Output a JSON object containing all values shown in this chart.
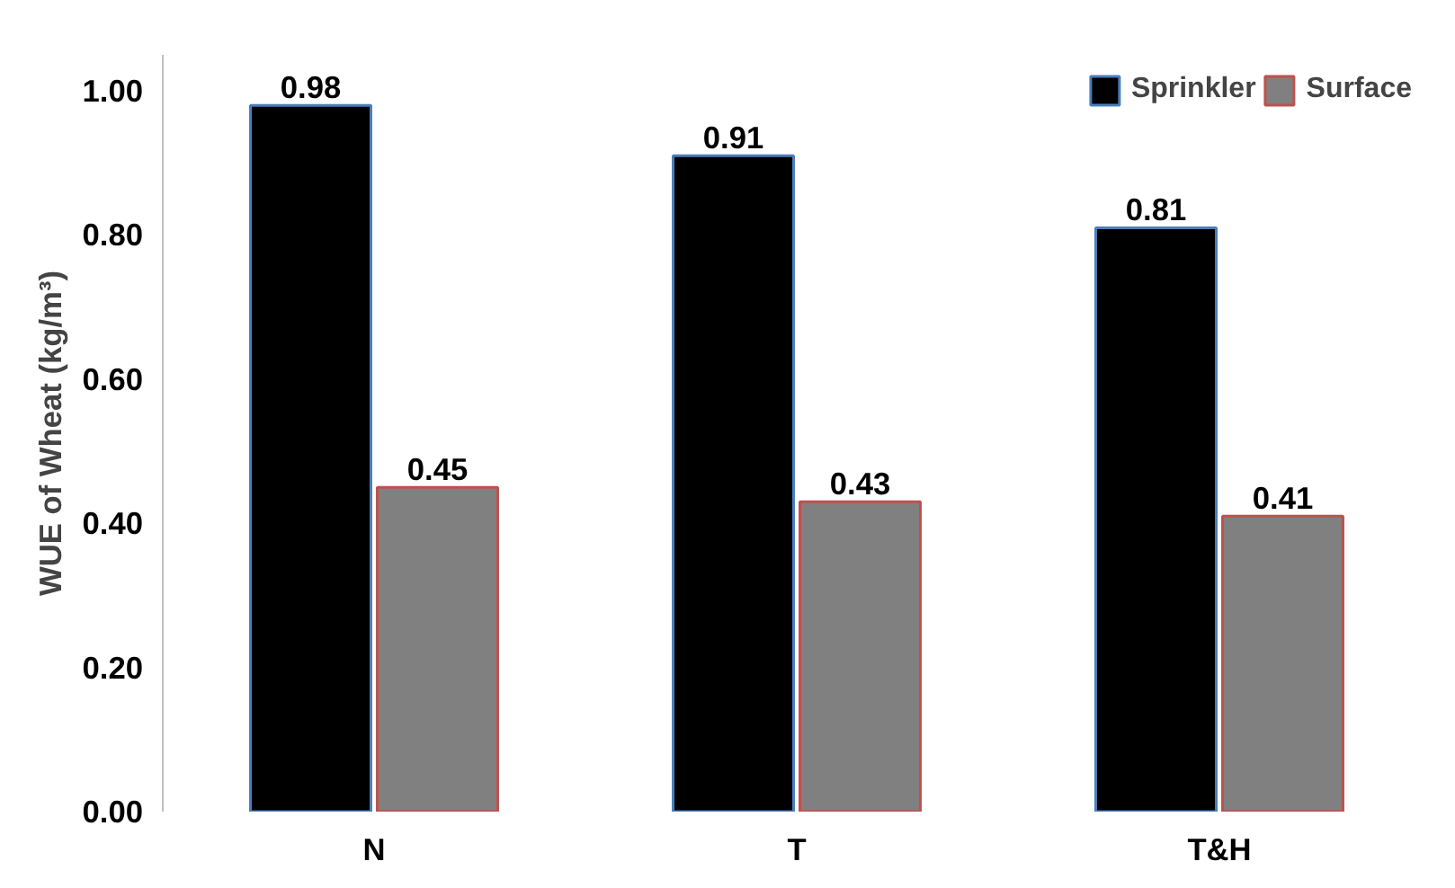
{
  "chart_data": {
    "type": "bar",
    "ylabel": "WUE of Wheat (kg/m³)",
    "categories": [
      "N",
      "T",
      "T&H"
    ],
    "series": [
      {
        "name": "Sprinkler",
        "color": "#000000",
        "values": [
          0.98,
          0.91,
          0.81
        ]
      },
      {
        "name": "Surface",
        "color": "#808080",
        "values": [
          0.45,
          0.43,
          0.41
        ]
      }
    ],
    "ylim": [
      0,
      1.05
    ],
    "yticks": [
      {
        "value": 0,
        "label": "0.00"
      },
      {
        "value": 0.2,
        "label": "0.20"
      },
      {
        "value": 0.4,
        "label": "0.40"
      },
      {
        "value": 0.6,
        "label": "0.60"
      },
      {
        "value": 0.8,
        "label": "0.80"
      },
      {
        "value": 1.0,
        "label": "1.00"
      }
    ],
    "data_labels": true,
    "legend": "top right",
    "grid": false
  }
}
